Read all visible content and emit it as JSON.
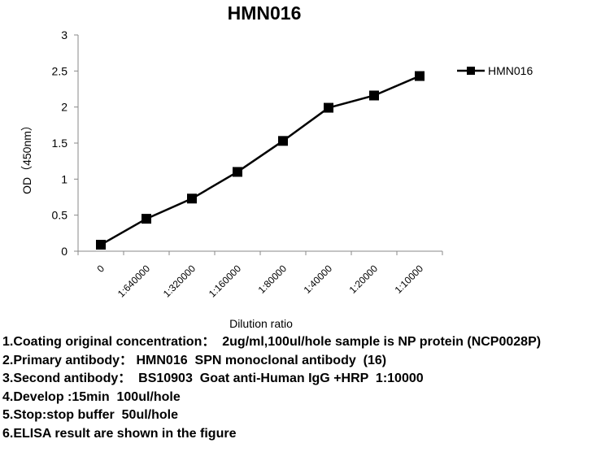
{
  "chart_data": {
    "type": "line",
    "title": "HMN016",
    "xlabel": "Dilution ratio",
    "ylabel": "OD（450nm）",
    "categories": [
      "0",
      "1:640000",
      "1:320000",
      "1:160000",
      "1:80000",
      "1:40000",
      "1:20000",
      "1:10000"
    ],
    "series": [
      {
        "name": "HMN016",
        "values": [
          0.09,
          0.45,
          0.73,
          1.1,
          1.53,
          1.99,
          2.16,
          2.43
        ]
      }
    ],
    "ylim": [
      0,
      3
    ],
    "yticks": [
      "0",
      "0.5",
      "1",
      "1.5",
      "2",
      "2.5",
      "3"
    ],
    "grid": false,
    "legend_position": "right",
    "color": "#000000"
  },
  "notes": [
    "1.Coating original concentration：  2ug/ml,100ul/hole sample is NP protein (NCP0028P)",
    "2.Primary antibody： HMN016  SPN monoclonal antibody  (16)",
    "3.Second antibody：  BS10903  Goat anti-Human IgG +HRP  1:10000",
    "4.Develop :15min  100ul/hole",
    "5.Stop:stop buffer  50ul/hole",
    "6.ELISA result are shown in the figure"
  ]
}
